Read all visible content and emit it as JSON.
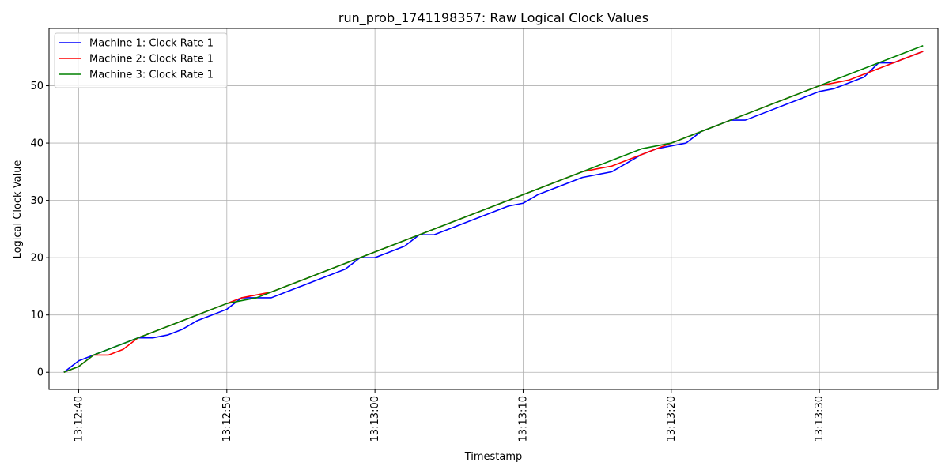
{
  "chart_data": {
    "type": "line",
    "title": "run_prob_1741198357: Raw Logical Clock Values",
    "xlabel": "Timestamp",
    "ylabel": "Logical Clock Value",
    "x_start": "13:12:39",
    "x_end": "13:13:37",
    "xlim": [
      "13:12:38",
      "13:13:38"
    ],
    "ylim": [
      -3,
      60
    ],
    "x_ticks": [
      "13:12:40",
      "13:12:50",
      "13:13:00",
      "13:13:10",
      "13:13:20",
      "13:13:30"
    ],
    "y_ticks": [
      0,
      10,
      20,
      30,
      40,
      50
    ],
    "grid": true,
    "legend_position": "top-left",
    "series": [
      {
        "name": "Machine 1: Clock Rate 1",
        "color": "#0000ff",
        "values": [
          0,
          2,
          3,
          4,
          5,
          6,
          6,
          6.5,
          7.5,
          9,
          10,
          11,
          13,
          13,
          13,
          14,
          15,
          16,
          17,
          18,
          20,
          20,
          21,
          22,
          24,
          24,
          25,
          26,
          27,
          28,
          29,
          29.5,
          31,
          32,
          33,
          34,
          34.5,
          35,
          36.5,
          38,
          39,
          39.5,
          40,
          42,
          43,
          44,
          44,
          45,
          46,
          47,
          48,
          49,
          49.5,
          50.5,
          51.5,
          54,
          54,
          55,
          56
        ]
      },
      {
        "name": "Machine 2: Clock Rate 1",
        "color": "#ff0000",
        "values": [
          0,
          1,
          3,
          3,
          4,
          6,
          7,
          8,
          9,
          10,
          11,
          12,
          13,
          13.5,
          14,
          15,
          16,
          17,
          18,
          19,
          20,
          21,
          22,
          23,
          24,
          25,
          26,
          27,
          28,
          29,
          30,
          31,
          32,
          33,
          34,
          35,
          35.5,
          36,
          37,
          38,
          39,
          40,
          41,
          42,
          43,
          44,
          45,
          46,
          47,
          48,
          49,
          50,
          50.5,
          51,
          52,
          53,
          54,
          55,
          56
        ]
      },
      {
        "name": "Machine 3: Clock Rate 1",
        "color": "#008000",
        "values": [
          0,
          1,
          3,
          4,
          5,
          6,
          7,
          8,
          9,
          10,
          11,
          12,
          12.5,
          13,
          14,
          15,
          16,
          17,
          18,
          19,
          20,
          21,
          22,
          23,
          24,
          25,
          26,
          27,
          28,
          29,
          30,
          31,
          32,
          33,
          34,
          35,
          36,
          37,
          38,
          39,
          39.5,
          40,
          41,
          42,
          43,
          44,
          45,
          46,
          47,
          48,
          49,
          50,
          51,
          52,
          53,
          54,
          55,
          56,
          57
        ]
      }
    ]
  }
}
